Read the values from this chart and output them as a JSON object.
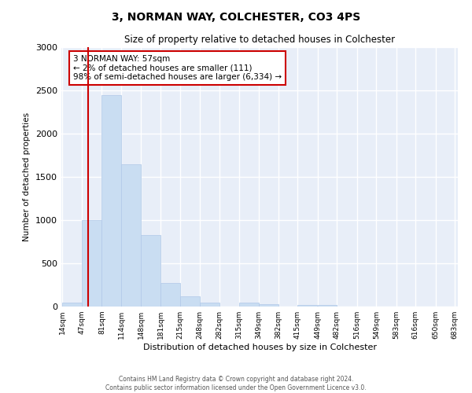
{
  "title": "3, NORMAN WAY, COLCHESTER, CO3 4PS",
  "subtitle": "Size of property relative to detached houses in Colchester",
  "xlabel": "Distribution of detached houses by size in Colchester",
  "ylabel": "Number of detached properties",
  "bar_color": "#c9ddf2",
  "bar_edge_color": "#b0c8e8",
  "background_color": "#e8eef8",
  "grid_color": "#ffffff",
  "annotation_box_color": "#cc0000",
  "annotation_text_line1": "3 NORMAN WAY: 57sqm",
  "annotation_text_line2": "← 2% of detached houses are smaller (111)",
  "annotation_text_line3": "98% of semi-detached houses are larger (6,334) →",
  "red_line_x": 57,
  "ylim": [
    0,
    3000
  ],
  "yticks": [
    0,
    500,
    1000,
    1500,
    2000,
    2500,
    3000
  ],
  "bins": [
    14,
    47,
    81,
    114,
    148,
    181,
    215,
    248,
    282,
    315,
    349,
    382,
    415,
    449,
    482,
    516,
    549,
    583,
    616,
    650,
    683
  ],
  "counts": [
    50,
    1000,
    2450,
    1650,
    830,
    270,
    120,
    50,
    0,
    50,
    30,
    0,
    20,
    15,
    0,
    0,
    0,
    0,
    0,
    0
  ],
  "footer_line1": "Contains HM Land Registry data © Crown copyright and database right 2024.",
  "footer_line2": "Contains public sector information licensed under the Open Government Licence v3.0."
}
